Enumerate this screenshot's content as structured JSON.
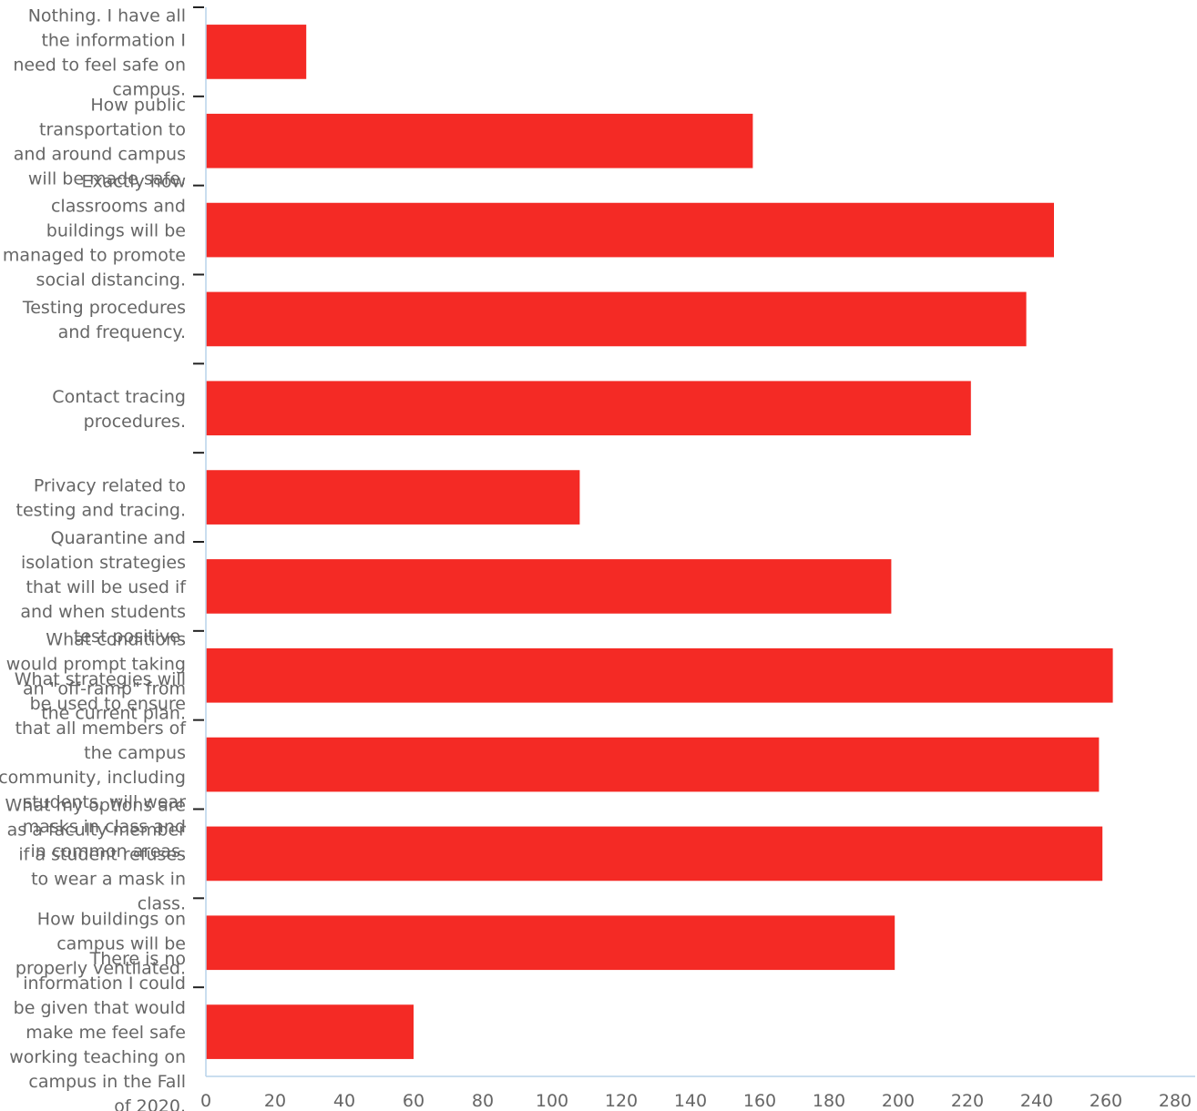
{
  "chart_data": {
    "type": "bar",
    "orientation": "horizontal",
    "categories": [
      "Nothing. I have all the information I need to feel safe on campus.",
      "How public transportation to and around campus will be made safe.",
      "Exactly how classrooms and buildings will be managed to promote social distancing.",
      "Testing procedures and frequency.",
      "Contact tracing procedures.",
      "Privacy related to testing and tracing.",
      "Quarantine and isolation strategies that will be used if and when students test positive.",
      "What conditions would prompt taking an \"off-ramp\" from the current plan.",
      "What strategies will be used to ensure that all members of the campus community, including students, will wear masks in class and in common areas.",
      "What my options are as a faculty member if a student refuses to wear a mask in class.",
      "How buildings on campus will be properly ventilated.",
      "There is no information I could be given that would make me feel safe working teaching on campus in the Fall of 2020."
    ],
    "values": [
      29,
      158,
      245,
      237,
      221,
      108,
      198,
      262,
      258,
      259,
      199,
      60
    ],
    "xlim": [
      0,
      280
    ],
    "x_ticks": [
      "0",
      "20",
      "40",
      "60",
      "80",
      "100",
      "120",
      "140",
      "160",
      "180",
      "200",
      "220",
      "240",
      "260",
      "280"
    ],
    "bar_color": "#f42a25",
    "axis_color": "#b9d3ea",
    "grid": false
  }
}
